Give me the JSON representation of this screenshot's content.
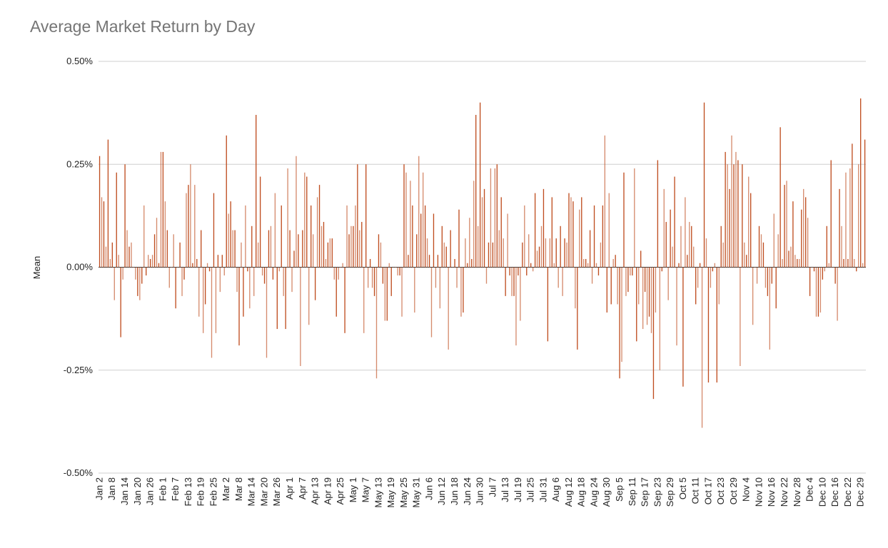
{
  "chart_data": {
    "type": "bar",
    "title": "Average Market Return by Day",
    "xlabel": "",
    "ylabel": "Mean",
    "ylim": [
      -0.5,
      0.5
    ],
    "y_unit": "%",
    "y_ticks": [
      "0.50%",
      "0.25%",
      "0.00%",
      "-0.25%",
      "-0.50%"
    ],
    "y_tick_values": [
      0.5,
      0.25,
      0,
      -0.25,
      -0.5
    ],
    "grid": true,
    "legend": "none",
    "bar_color": "#bf4d1f",
    "x_tick_labels": [
      "Jan 2",
      "Jan 8",
      "Jan 14",
      "Jan 20",
      "Jan 26",
      "Feb 1",
      "Feb 7",
      "Feb 13",
      "Feb 19",
      "Feb 25",
      "Mar 2",
      "Mar 8",
      "Mar 14",
      "Mar 20",
      "Mar 26",
      "Apr 1",
      "Apr 7",
      "Apr 13",
      "Apr 19",
      "Apr 25",
      "May 1",
      "May 7",
      "May 13",
      "May 19",
      "May 25",
      "May 31",
      "Jun 6",
      "Jun 12",
      "Jun 18",
      "Jun 24",
      "Jun 30",
      "Jul 7",
      "Jul 13",
      "Jul 19",
      "Jul 25",
      "Jul 31",
      "Aug 6",
      "Aug 12",
      "Aug 18",
      "Aug 24",
      "Aug 30",
      "Sep 5",
      "Sep 11",
      "Sep 17",
      "Sep 23",
      "Sep 29",
      "Oct 5",
      "Oct 11",
      "Oct 17",
      "Oct 23",
      "Oct 29",
      "Nov 4",
      "Nov 10",
      "Nov 16",
      "Nov 22",
      "Nov 28",
      "Dec 4",
      "Dec 10",
      "Dec 16",
      "Dec 22",
      "Dec 29"
    ],
    "values": [
      0.27,
      0.17,
      0.16,
      0.05,
      0.31,
      0.02,
      0.06,
      -0.08,
      0.23,
      0.03,
      -0.17,
      -0.03,
      0.25,
      0.09,
      0.05,
      0.06,
      0,
      -0.03,
      -0.07,
      -0.08,
      -0.04,
      0.15,
      -0.02,
      0.03,
      0.02,
      0.03,
      0.08,
      0.12,
      0.01,
      0.28,
      0.28,
      0.16,
      0.09,
      -0.05,
      0,
      0.08,
      -0.1,
      0,
      0.06,
      -0.07,
      -0.03,
      0.18,
      0.2,
      0.25,
      0.01,
      0.2,
      0.02,
      -0.12,
      0.09,
      -0.16,
      -0.09,
      0.01,
      -0.01,
      -0.22,
      0.18,
      -0.16,
      0.03,
      -0.06,
      0.03,
      -0.02,
      0.32,
      0.13,
      0.16,
      0.09,
      0.09,
      -0.06,
      -0.19,
      0.06,
      -0.12,
      0.15,
      -0.01,
      -0.1,
      0.1,
      -0.07,
      0.37,
      0.06,
      0.22,
      -0.02,
      -0.04,
      -0.22,
      0.09,
      0.1,
      -0.03,
      0.18,
      -0.15,
      -0.01,
      0.15,
      -0.07,
      -0.15,
      0.24,
      0.09,
      -0.06,
      0.04,
      0.27,
      0.08,
      -0.24,
      0.09,
      0.23,
      0.22,
      -0.14,
      0.15,
      0.08,
      -0.08,
      0.17,
      0.2,
      0.1,
      0.11,
      0.02,
      0.06,
      0.07,
      0.07,
      -0.03,
      -0.12,
      -0.03,
      0,
      0.01,
      -0.16,
      0.15,
      0.08,
      0.1,
      0.1,
      0.15,
      0.25,
      0.09,
      0.11,
      -0.16,
      0.25,
      -0.05,
      0.02,
      -0.05,
      -0.07,
      -0.27,
      0.08,
      0.06,
      -0.04,
      -0.13,
      -0.13,
      0.01,
      -0.07,
      0,
      0,
      -0.02,
      -0.02,
      -0.12,
      0.25,
      0.23,
      0.03,
      0.21,
      0.15,
      -0.11,
      0.08,
      0.27,
      0.13,
      0.23,
      0.15,
      0.07,
      0.03,
      -0.17,
      0.13,
      -0.05,
      0.03,
      -0.1,
      0.1,
      0.06,
      0.05,
      -0.2,
      0.09,
      0,
      0.02,
      -0.05,
      0.14,
      -0.12,
      -0.11,
      0.07,
      0.01,
      0.12,
      0.02,
      0.21,
      0.37,
      0.1,
      0.4,
      0.17,
      0.19,
      -0.04,
      0.06,
      0.24,
      0.06,
      0.24,
      0.25,
      0.09,
      0.17,
      0.07,
      -0.07,
      0.13,
      -0.02,
      -0.07,
      -0.07,
      -0.19,
      -0.02,
      -0.13,
      0.06,
      0.15,
      -0.02,
      0.08,
      0.01,
      -0.01,
      0.18,
      0.04,
      0.05,
      0.1,
      0.19,
      0.07,
      -0.18,
      0.07,
      0.17,
      0.01,
      0.07,
      -0.05,
      0.1,
      -0.07,
      0.07,
      0.06,
      0.18,
      0.17,
      0.16,
      -0.1,
      -0.2,
      0.14,
      0.17,
      0.02,
      0.02,
      0.01,
      0.09,
      -0.04,
      0.15,
      0.01,
      -0.02,
      0.06,
      0.15,
      0.32,
      -0.11,
      0.18,
      -0.09,
      0.02,
      0.03,
      -0.09,
      -0.27,
      -0.23,
      0.23,
      -0.07,
      -0.06,
      -0.02,
      -0.02,
      0.24,
      -0.18,
      -0.09,
      0.04,
      -0.15,
      -0.06,
      -0.14,
      -0.12,
      -0.16,
      -0.32,
      -0.11,
      0.26,
      -0.25,
      -0.01,
      0.19,
      0.11,
      -0.08,
      0.14,
      0.05,
      0.22,
      -0.19,
      0.01,
      0.1,
      -0.29,
      0.17,
      0.03,
      0.11,
      0.1,
      0.05,
      -0.09,
      -0.05,
      0.01,
      -0.39,
      0.4,
      0.07,
      -0.28,
      -0.05,
      -0.01,
      0.01,
      -0.28,
      -0.09,
      0.1,
      0.06,
      0.28,
      0.25,
      0.19,
      0.32,
      0.25,
      0.28,
      0.26,
      -0.24,
      0.25,
      0.06,
      0.03,
      0.22,
      0.18,
      -0.14,
      0,
      -0.04,
      0.1,
      0.08,
      0.06,
      -0.05,
      -0.07,
      -0.2,
      -0.04,
      0.13,
      -0.1,
      0.08,
      0.34,
      0.02,
      0.2,
      0.21,
      0.04,
      0.05,
      0.16,
      0.03,
      0.02,
      0.02,
      0.14,
      0.19,
      0.17,
      0.12,
      -0.07,
      0,
      -0.01,
      -0.12,
      -0.12,
      -0.11,
      -0.03,
      -0.01,
      0.1,
      0.01,
      0.26,
      0,
      -0.04,
      -0.13,
      0.19,
      0.1,
      0.02,
      0.23,
      0.02,
      0.24,
      0.3,
      0.02,
      -0.01,
      0.25,
      0.41,
      0.01,
      0.31
    ]
  }
}
